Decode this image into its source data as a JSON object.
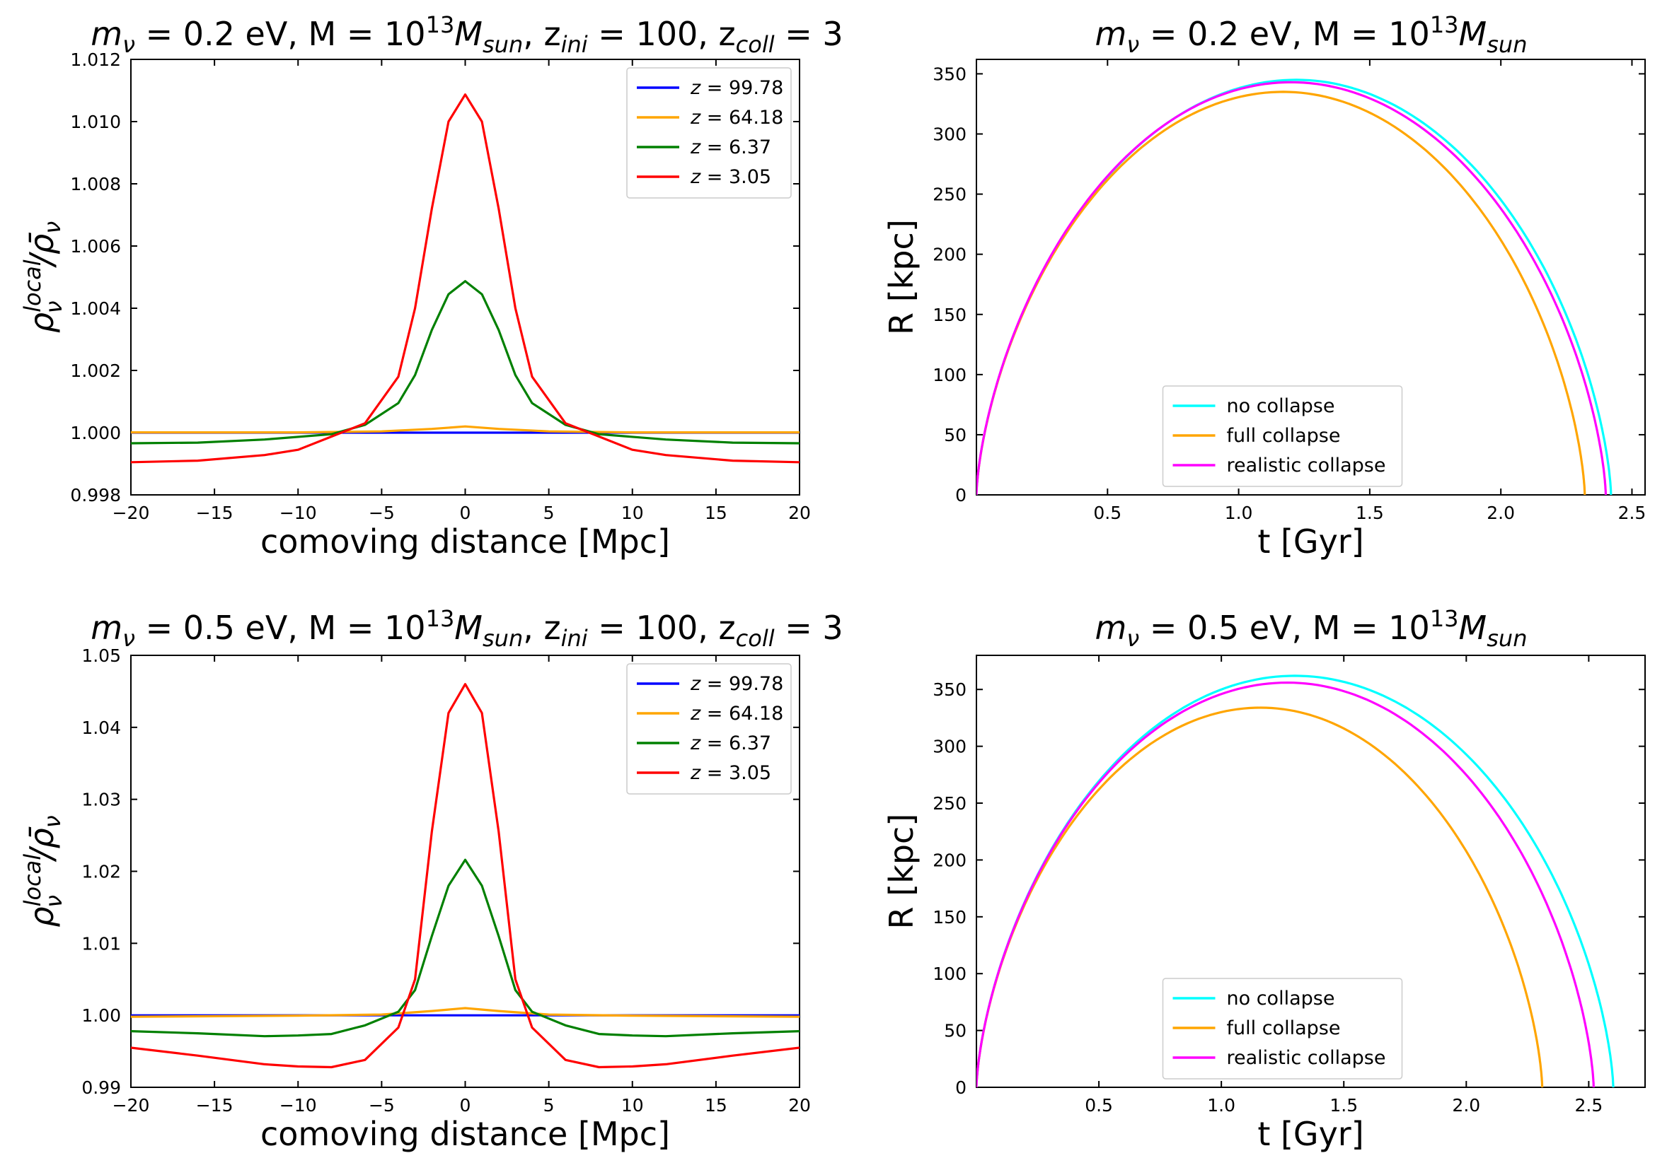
{
  "chart_data": [
    {
      "type": "line",
      "title": {
        "prefix": "m",
        "sub": "ν",
        "middle": " = 0.2 eV, M = 10",
        "sup": "13",
        "after": "M",
        "sub2": "sun",
        "tail": ", z",
        "sub3": "ini",
        "tail2": " = 100, z",
        "sub4": "coll",
        "tail3": " = 3"
      },
      "xlabel": "comoving distance [Mpc]",
      "ylabel": {
        "base": "ρ",
        "sup": "local",
        "sub": "ν",
        "rest": "/ρ̄",
        "sub2": "ν"
      },
      "xlim": [
        -20,
        20
      ],
      "ylim": [
        0.998,
        1.012
      ],
      "xticks": [
        -20,
        -15,
        -10,
        -5,
        0,
        5,
        10,
        15,
        20
      ],
      "yticks": [
        "0.998",
        "1.000",
        "1.002",
        "1.004",
        "1.006",
        "1.008",
        "1.010",
        "1.012"
      ],
      "legend_position": "top-right",
      "series": [
        {
          "name": "z = 99.78",
          "color": "#0000ff",
          "x": [
            -20,
            20
          ],
          "y": [
            1.0,
            1.0
          ]
        },
        {
          "name": "z = 64.18",
          "color": "#ffa500",
          "x": [
            -20,
            -10,
            -5,
            -2,
            0,
            2,
            5,
            10,
            20
          ],
          "y": [
            1.00001,
            1.00001,
            1.00004,
            1.00012,
            1.0002,
            1.00012,
            1.00004,
            1.00001,
            1.00001
          ]
        },
        {
          "name": "z = 6.37",
          "color": "#008000",
          "x": [
            -20,
            -16,
            -12,
            -8,
            -6,
            -4,
            -3,
            -2,
            -1,
            0,
            1,
            2,
            3,
            4,
            6,
            8,
            12,
            16,
            20
          ],
          "y": [
            0.99966,
            0.99968,
            0.99978,
            0.99995,
            1.00025,
            1.00095,
            1.00185,
            1.0033,
            1.00445,
            1.00487,
            1.00445,
            1.0033,
            1.00185,
            1.00095,
            1.00025,
            0.99995,
            0.99978,
            0.99968,
            0.99966
          ]
        },
        {
          "name": "z = 3.05",
          "color": "#ff0000",
          "x": [
            -20,
            -16,
            -12,
            -10,
            -6,
            -4,
            -3,
            -2,
            -1,
            0,
            1,
            2,
            3,
            4,
            6,
            10,
            12,
            16,
            20
          ],
          "y": [
            0.99905,
            0.9991,
            0.99928,
            0.99945,
            1.0003,
            1.0018,
            1.004,
            1.0072,
            1.01,
            1.01087,
            1.01,
            1.0072,
            1.004,
            1.0018,
            1.0003,
            0.99945,
            0.99928,
            0.9991,
            0.99905
          ]
        }
      ]
    },
    {
      "type": "line",
      "title": {
        "prefix": "m",
        "sub": "ν",
        "middle": " = 0.2 eV, M = 10",
        "sup": "13",
        "after": "M",
        "sub2": "sun"
      },
      "xlabel": "t [Gyr]",
      "ylabel": "R [kpc]",
      "xlim": [
        0.0,
        2.55
      ],
      "ylim": [
        0,
        362
      ],
      "xticks": [
        0.5,
        1.0,
        1.5,
        2.0,
        2.5
      ],
      "xticklabels": [
        "0.5",
        "1.0",
        "1.5",
        "2.0",
        "2.5"
      ],
      "yticks": [
        0,
        50,
        100,
        150,
        200,
        250,
        300,
        350
      ],
      "legend_position": "bottom-center",
      "series": [
        {
          "name": "no collapse",
          "color": "#00ffff",
          "tmax": 1.22,
          "rmax": 345,
          "tend": 2.42
        },
        {
          "name": "full collapse",
          "color": "#ffa500",
          "tmax": 1.17,
          "rmax": 335,
          "tend": 2.32
        },
        {
          "name": "realistic collapse",
          "color": "#ff00ff",
          "tmax": 1.2,
          "rmax": 343,
          "tend": 2.4
        }
      ]
    },
    {
      "type": "line",
      "title": {
        "prefix": "m",
        "sub": "ν",
        "middle": " = 0.5 eV, M = 10",
        "sup": "13",
        "after": "M",
        "sub2": "sun",
        "tail": ", z",
        "sub3": "ini",
        "tail2": " = 100, z",
        "sub4": "coll",
        "tail3": " = 3"
      },
      "xlabel": "comoving distance [Mpc]",
      "ylabel": {
        "base": "ρ",
        "sup": "local",
        "sub": "ν",
        "rest": "/ρ̄",
        "sub2": "ν"
      },
      "xlim": [
        -20,
        20
      ],
      "ylim": [
        0.99,
        1.05
      ],
      "xticks": [
        -20,
        -15,
        -10,
        -5,
        0,
        5,
        10,
        15,
        20
      ],
      "yticks": [
        "0.99",
        "1.00",
        "1.01",
        "1.02",
        "1.03",
        "1.04",
        "1.05"
      ],
      "legend_position": "top-right",
      "series": [
        {
          "name": "z = 99.78",
          "color": "#0000ff",
          "x": [
            -20,
            20
          ],
          "y": [
            1.0,
            1.0
          ]
        },
        {
          "name": "z = 64.18",
          "color": "#ffa500",
          "x": [
            -20,
            -10,
            -5,
            -2,
            0,
            2,
            5,
            10,
            20
          ],
          "y": [
            0.9998,
            0.99995,
            1.0001,
            1.0006,
            1.001,
            1.0006,
            1.0001,
            0.99995,
            0.9998
          ]
        },
        {
          "name": "z = 6.37",
          "color": "#008000",
          "x": [
            -20,
            -16,
            -12,
            -10,
            -8,
            -6,
            -4,
            -3,
            -2,
            -1,
            0,
            1,
            2,
            3,
            4,
            6,
            8,
            10,
            12,
            16,
            20
          ],
          "y": [
            0.9978,
            0.9975,
            0.9971,
            0.9972,
            0.9974,
            0.9986,
            1.0005,
            1.0035,
            1.011,
            1.018,
            1.0216,
            1.018,
            1.011,
            1.0035,
            1.0005,
            0.9986,
            0.9974,
            0.9972,
            0.9971,
            0.9975,
            0.9978
          ]
        },
        {
          "name": "z = 3.05",
          "color": "#ff0000",
          "x": [
            -20,
            -16,
            -12,
            -10,
            -8,
            -6,
            -4,
            -3,
            -2,
            -1,
            0,
            1,
            2,
            3,
            4,
            6,
            8,
            10,
            12,
            16,
            20
          ],
          "y": [
            0.9955,
            0.9944,
            0.9932,
            0.9929,
            0.9928,
            0.9938,
            0.9983,
            1.005,
            1.0255,
            1.042,
            1.046,
            1.042,
            1.0255,
            1.005,
            0.9983,
            0.9938,
            0.9928,
            0.9929,
            0.9932,
            0.9944,
            0.9955
          ]
        }
      ]
    },
    {
      "type": "line",
      "title": {
        "prefix": "m",
        "sub": "ν",
        "middle": " = 0.5 eV, M = 10",
        "sup": "13",
        "after": "M",
        "sub2": "sun"
      },
      "xlabel": "t [Gyr]",
      "ylabel": "R [kpc]",
      "xlim": [
        0.0,
        2.73
      ],
      "ylim": [
        0,
        380
      ],
      "xticks": [
        0.5,
        1.0,
        1.5,
        2.0,
        2.5
      ],
      "xticklabels": [
        "0.5",
        "1.0",
        "1.5",
        "2.0",
        "2.5"
      ],
      "yticks": [
        0,
        50,
        100,
        150,
        200,
        250,
        300,
        350
      ],
      "legend_position": "bottom-center",
      "series": [
        {
          "name": "no collapse",
          "color": "#00ffff",
          "tmax": 1.3,
          "rmax": 362,
          "tend": 2.6
        },
        {
          "name": "full collapse",
          "color": "#ffa500",
          "tmax": 1.16,
          "rmax": 334,
          "tend": 2.31
        },
        {
          "name": "realistic collapse",
          "color": "#ff00ff",
          "tmax": 1.27,
          "rmax": 356,
          "tend": 2.52
        }
      ]
    }
  ]
}
